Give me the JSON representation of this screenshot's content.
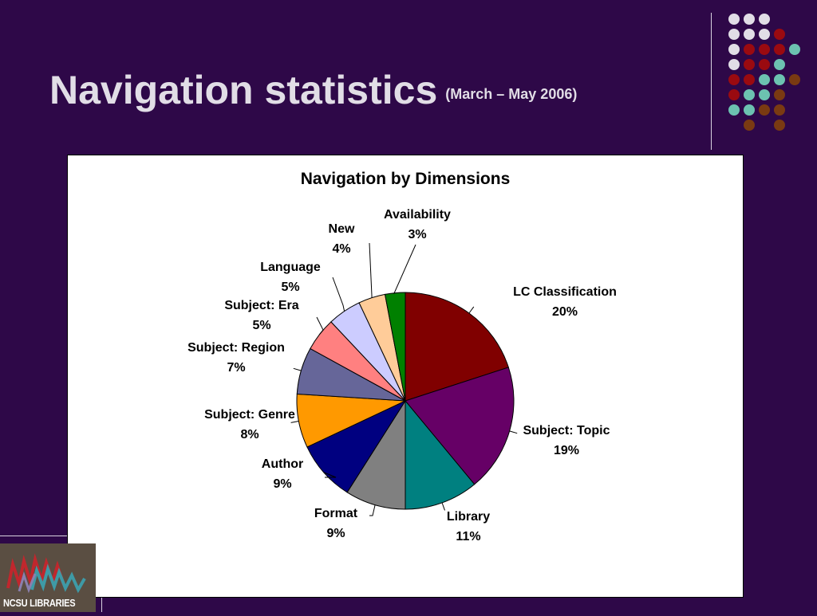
{
  "slide": {
    "title": "Navigation statistics",
    "subtitle": "(March – May 2006)",
    "logo_text": "NCSU LIBRARIES"
  },
  "colors": {
    "background": "#2e0848",
    "dots": [
      "#e1dde6",
      "#9a0a10",
      "#6cc2b0",
      "#7a3a12"
    ]
  },
  "chart_data": {
    "type": "pie",
    "title": "Navigation by Dimensions",
    "series": [
      {
        "values": [
          20,
          19,
          11,
          9,
          9,
          8,
          7,
          5,
          5,
          4,
          3
        ],
        "categories": [
          "LC Classification",
          "Subject: Topic",
          "Library",
          "Format",
          "Author",
          "Subject: Genre",
          "Subject: Region",
          "Subject: Era",
          "Language",
          "New",
          "Availability"
        ]
      }
    ],
    "labels": [
      "20%",
      "19%",
      "11%",
      "9%",
      "9%",
      "8%",
      "7%",
      "5%",
      "5%",
      "4%",
      "3%"
    ],
    "colors": [
      "#800000",
      "#660066",
      "#008080",
      "#808080",
      "#000080",
      "#ff9900",
      "#666699",
      "#ff8080",
      "#ccccff",
      "#ffcc99",
      "#008000"
    ],
    "start_angle_deg": 0,
    "direction": "clockwise",
    "legend": "none"
  }
}
